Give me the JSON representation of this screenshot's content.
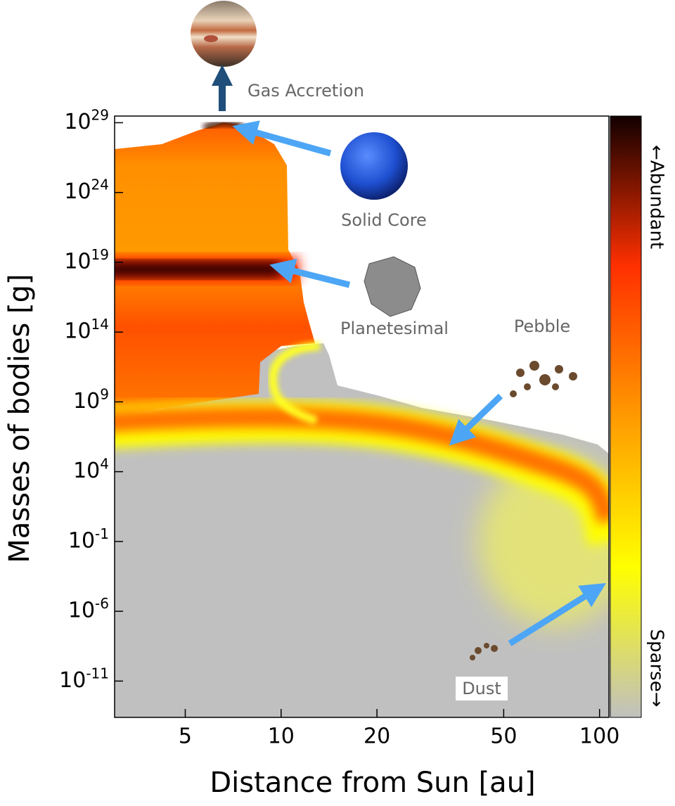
{
  "chart_data": {
    "type": "heatmap",
    "x_label": "Distance from Sun [au]",
    "y_label": "Masses of bodies  [g]",
    "x_scale": "log",
    "y_scale": "log",
    "xlim": [
      3,
      107
    ],
    "ylim": [
      2.5e-14,
      3e+29
    ],
    "xticks": [
      5,
      10,
      20,
      50,
      100
    ],
    "yticks": [
      {
        "value": 1e+29,
        "label": "10",
        "exponent": "29"
      },
      {
        "value": 1e+24,
        "label": "10",
        "exponent": "24"
      },
      {
        "value": 1e+19,
        "label": "10",
        "exponent": "19"
      },
      {
        "value": 100000000000000.0,
        "label": "10",
        "exponent": "14"
      },
      {
        "value": 1000000000.0,
        "label": "10",
        "exponent": "9"
      },
      {
        "value": 10000.0,
        "label": "10",
        "exponent": "4"
      },
      {
        "value": 0.1,
        "label": "10",
        "exponent": "-1"
      },
      {
        "value": 1e-06,
        "label": "10",
        "exponent": "-6"
      },
      {
        "value": 1e-11,
        "label": "10",
        "exponent": "-11"
      }
    ],
    "colorbar": {
      "top_label": "←Abundant",
      "bottom_label": "Sparse→",
      "colors": [
        "#c0c0c0",
        "#ffff00",
        "#ff9a00",
        "#ff3000",
        "#120000"
      ]
    },
    "annotations": [
      "Gas Accretion",
      "Solid Core",
      "Planetesimal",
      "Pebble",
      "Dust"
    ]
  }
}
